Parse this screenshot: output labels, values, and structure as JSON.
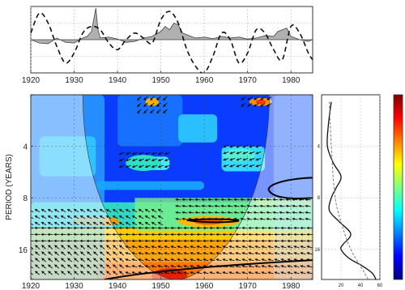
{
  "chart_data": [
    {
      "type": "line",
      "panel": "time-series",
      "title": "",
      "xlabel": "",
      "ylabel": "",
      "xlim": [
        1920,
        1985
      ],
      "ylim": [
        -1,
        1
      ],
      "x_ticks": [
        1920,
        1930,
        1940,
        1950,
        1960,
        1970,
        1980
      ],
      "grid": true,
      "series": [
        {
          "style": "solid-filled-gray",
          "x": [
            1920,
            1922,
            1924,
            1926,
            1928,
            1930,
            1932,
            1933,
            1934,
            1935,
            1935.5,
            1936,
            1938,
            1940,
            1942,
            1944,
            1946,
            1948,
            1950,
            1951,
            1952,
            1953,
            1954,
            1955,
            1956,
            1958,
            1960,
            1962,
            1964,
            1966,
            1968,
            1970,
            1972,
            1974,
            1976,
            1977,
            1978,
            1979,
            1980,
            1982,
            1984,
            1985
          ],
          "y": [
            0.0,
            -0.1,
            -0.12,
            0.05,
            -0.08,
            -0.1,
            0.05,
            0.1,
            0.25,
            0.95,
            0.3,
            0.05,
            0.08,
            0.02,
            -0.08,
            -0.05,
            0.05,
            0.1,
            0.25,
            0.4,
            0.3,
            0.5,
            0.45,
            0.2,
            0.15,
            0.05,
            0.08,
            0.03,
            0.1,
            0.05,
            0.08,
            0.02,
            0.05,
            0.12,
            0.1,
            0.25,
            0.3,
            0.35,
            0.1,
            0.0,
            -0.05,
            0.0
          ]
        },
        {
          "style": "dashed-black",
          "x": [
            1920,
            1922,
            1924,
            1926,
            1928,
            1930,
            1932,
            1934,
            1936,
            1938,
            1940,
            1942,
            1944,
            1946,
            1948,
            1950,
            1952,
            1954,
            1956,
            1958,
            1960,
            1962,
            1964,
            1966,
            1968,
            1970,
            1972,
            1974,
            1976,
            1978,
            1980,
            1982,
            1984,
            1985
          ],
          "y": [
            0.2,
            0.8,
            0.5,
            -0.2,
            -0.7,
            -0.4,
            0.2,
            0.4,
            0.3,
            -0.1,
            -0.3,
            0.0,
            0.2,
            0.05,
            -0.1,
            0.6,
            0.85,
            0.5,
            -0.3,
            -0.8,
            -1.0,
            -0.5,
            0.2,
            0.0,
            -0.7,
            -0.4,
            0.3,
            0.2,
            -0.3,
            -0.6,
            0.4,
            0.2,
            -0.4,
            -0.6
          ]
        }
      ]
    },
    {
      "type": "heatmap",
      "panel": "wavelet-power-spectrum",
      "title": "",
      "xlabel": "",
      "ylabel": "PERIOD (YEARS)",
      "xlim": [
        1920,
        1985
      ],
      "y_scale": "log2",
      "ylim": [
        2,
        24
      ],
      "x_ticks": [
        1920,
        1930,
        1940,
        1950,
        1960,
        1970,
        1980
      ],
      "y_ticks": [
        4,
        8,
        16
      ],
      "y_tick_labels": [
        "4",
        "8",
        "16"
      ],
      "annotations": [
        "cone-of-influence",
        "phase-arrows",
        "significance-contours"
      ]
    },
    {
      "type": "line",
      "panel": "global-wavelet-spectrum",
      "title": "",
      "xlabel": "",
      "ylabel": "",
      "xlim": [
        0,
        60
      ],
      "x_ticks": [
        20,
        40,
        60
      ],
      "y_scale": "log2",
      "ylim": [
        2,
        24
      ],
      "y_ticks": [
        4,
        8,
        16
      ],
      "y_tick_labels": [
        "4",
        "8",
        "16"
      ],
      "series": [
        {
          "style": "solid-black",
          "period": [
            2.2,
            3.0,
            4.0,
            5.0,
            6.0,
            7.0,
            8.0,
            9.5,
            11,
            13,
            15,
            16,
            18,
            20,
            22,
            24
          ],
          "power": [
            10,
            7,
            6,
            12,
            20,
            15,
            10,
            8,
            18,
            30,
            22,
            20,
            28,
            42,
            52,
            56
          ]
        },
        {
          "style": "dashed-black",
          "period": [
            2.2,
            4.0,
            8.0,
            12,
            16,
            20,
            24
          ],
          "power": [
            8,
            10,
            14,
            22,
            30,
            40,
            48
          ]
        }
      ]
    },
    {
      "type": "colorbar",
      "panel": "colorbar",
      "colors": [
        "#00007f",
        "#0000ff",
        "#0080ff",
        "#00ffff",
        "#80ff80",
        "#ffff00",
        "#ff8000",
        "#ff0000",
        "#7f0000"
      ],
      "ticks": []
    }
  ]
}
